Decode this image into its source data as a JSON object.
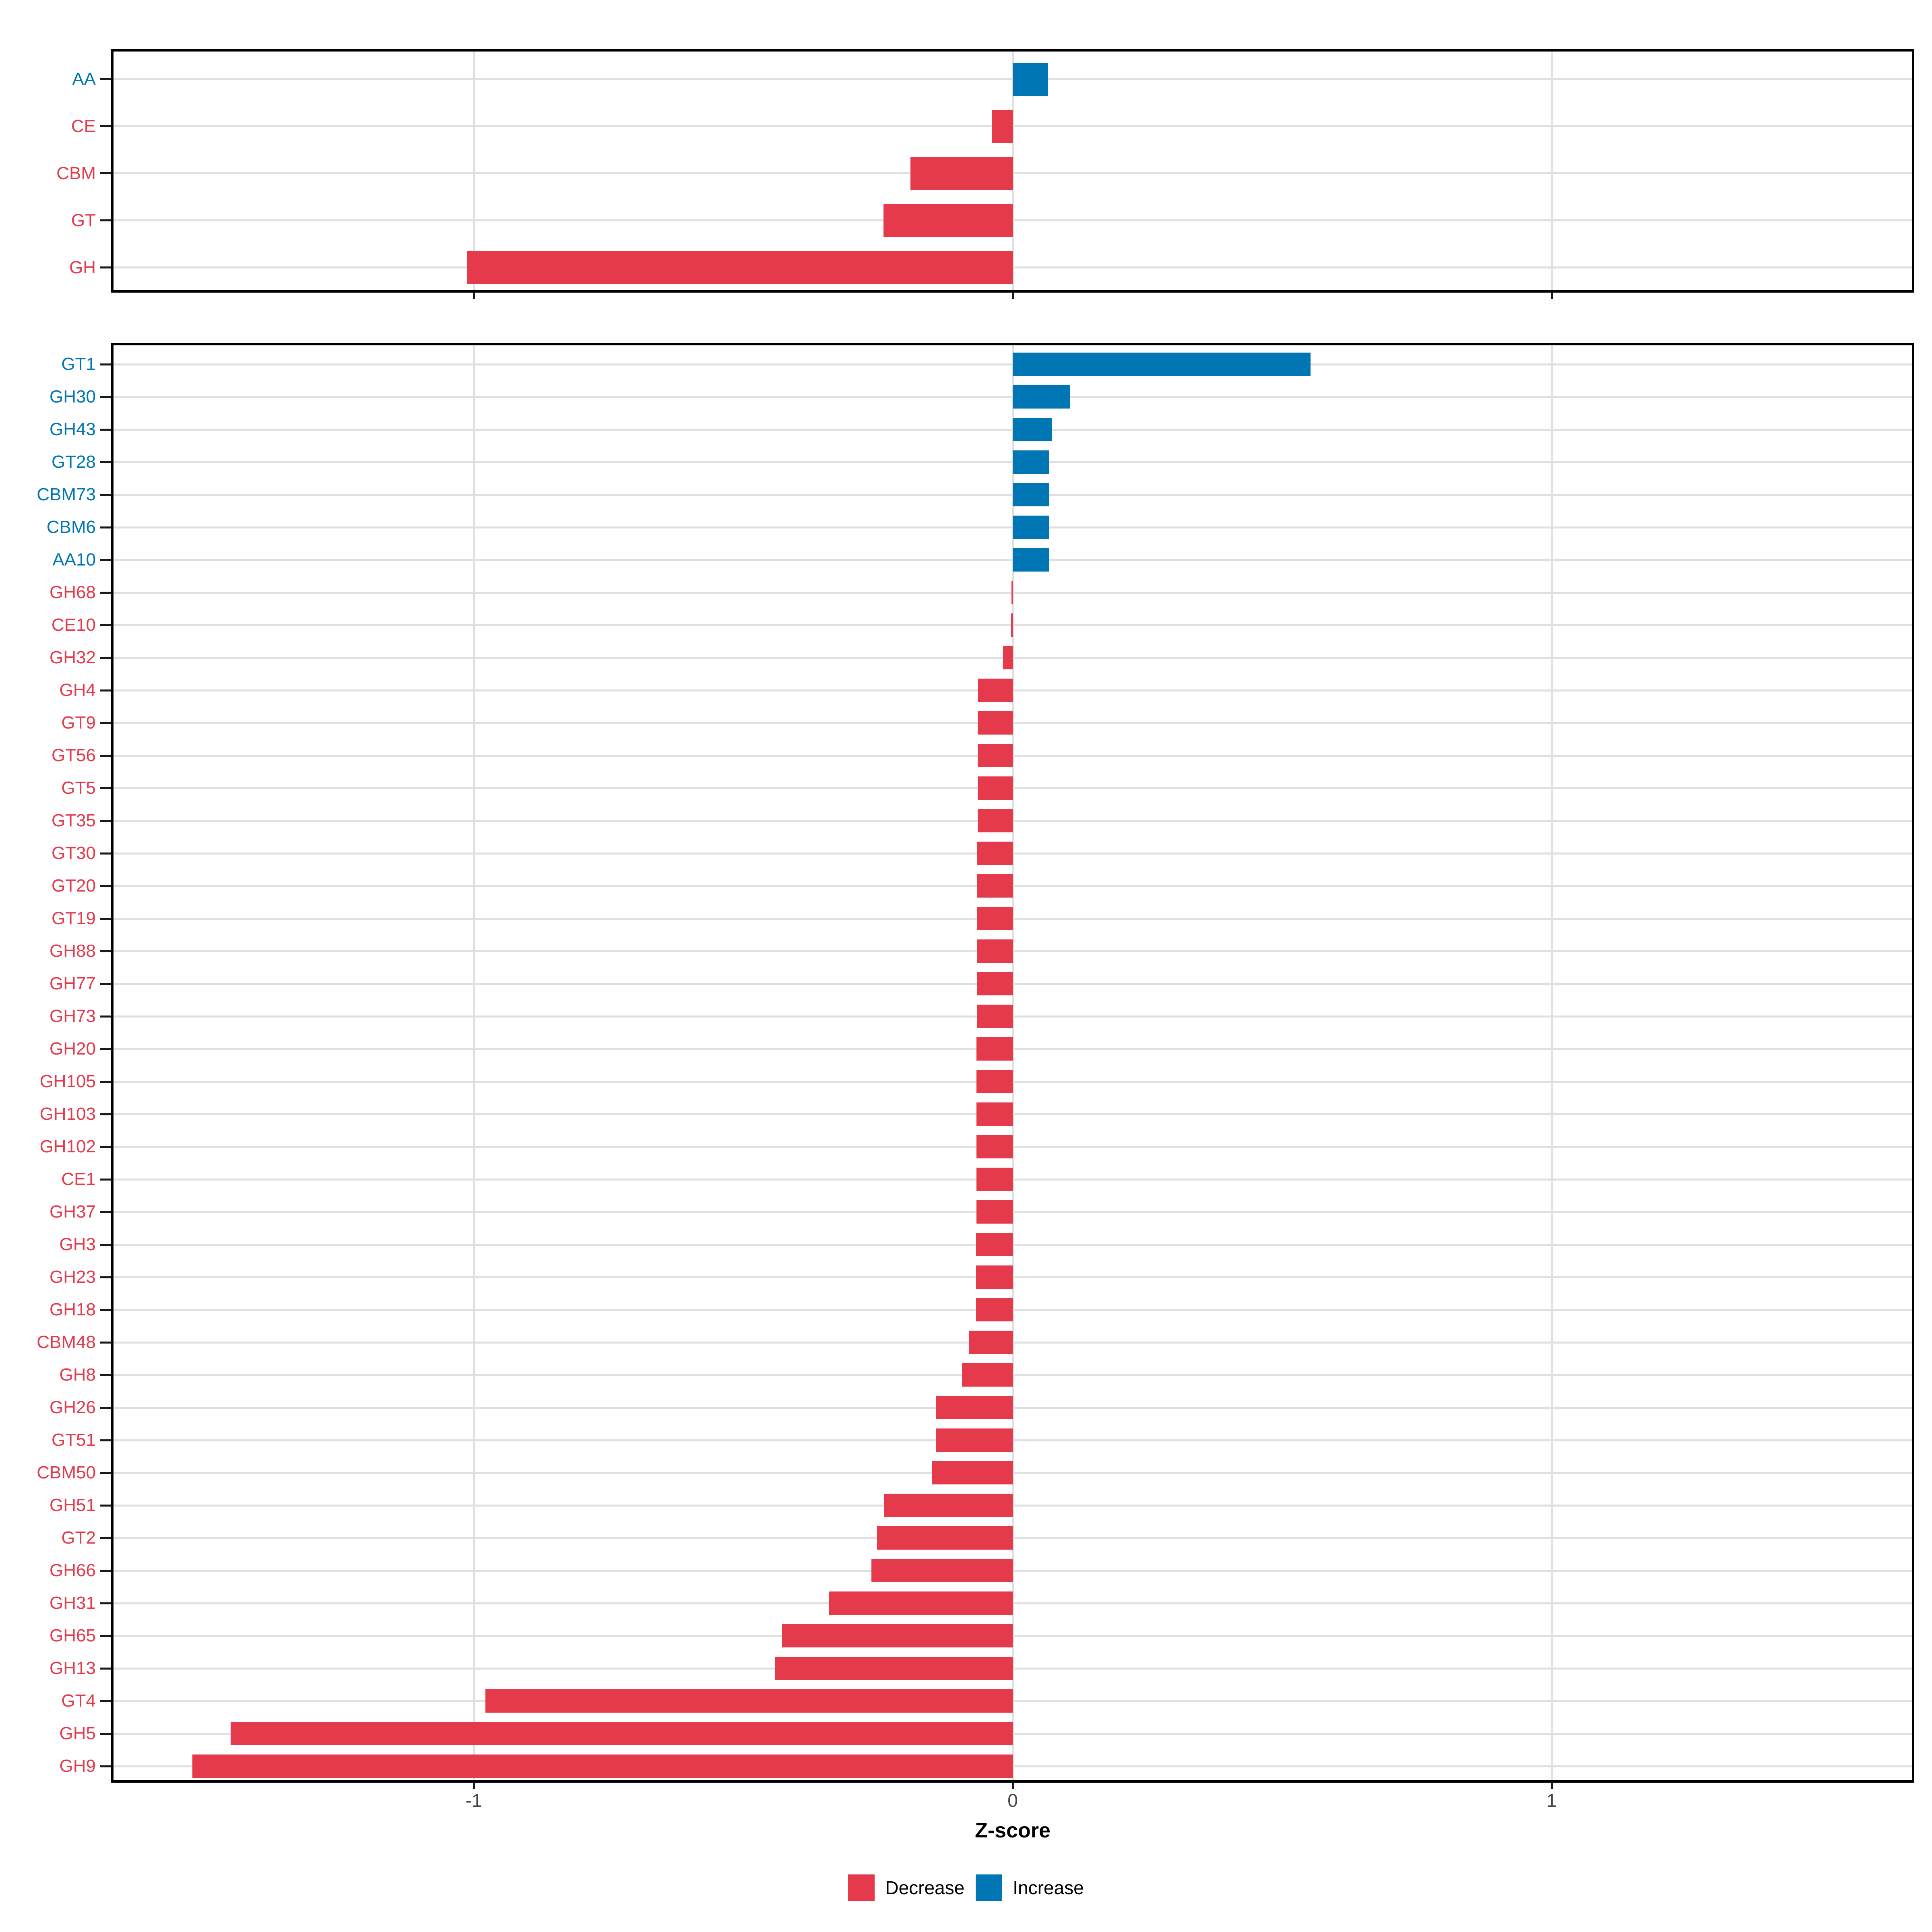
{
  "colors": {
    "decrease": "#e43a4c",
    "increase": "#0077b4",
    "grid": "#e0e0e0",
    "axis_text": "#454545",
    "panel_border": "#000000"
  },
  "axis": {
    "xlabel": "Z-score",
    "tick_labels": [
      "-1",
      "0",
      "1"
    ],
    "tick_values": [
      -1,
      0,
      1
    ]
  },
  "legend": {
    "items": [
      {
        "label": "Decrease",
        "color_key": "decrease"
      },
      {
        "label": "Increase",
        "color_key": "increase"
      }
    ]
  },
  "chart_data": [
    {
      "type": "bar",
      "orientation": "horizontal",
      "panel": "top",
      "xlabel": "Z-score",
      "xlim": [
        -1.67,
        1.67
      ],
      "x_ticks": [
        -1,
        0,
        1
      ],
      "grid": "major-only",
      "legend_position": "bottom",
      "categories": [
        "AA",
        "CE",
        "CBM",
        "GT",
        "GH"
      ],
      "values": [
        0.065,
        -0.038,
        -0.19,
        -0.24,
        -1.013
      ]
    },
    {
      "type": "bar",
      "orientation": "horizontal",
      "panel": "bottom",
      "xlabel": "Z-score",
      "xlim": [
        -1.67,
        1.67
      ],
      "x_ticks": [
        -1,
        0,
        1
      ],
      "grid": "major-only",
      "legend_position": "bottom",
      "categories": [
        "GT1",
        "GH30",
        "GH43",
        "GT28",
        "CBM73",
        "CBM6",
        "AA10",
        "GH68",
        "CE10",
        "GH32",
        "GH4",
        "GT9",
        "GT56",
        "GT5",
        "GT35",
        "GT30",
        "GT20",
        "GT19",
        "GH88",
        "GH77",
        "GH73",
        "GH20",
        "GH105",
        "GH103",
        "GH102",
        "CE1",
        "GH37",
        "GH3",
        "GH23",
        "GH18",
        "CBM48",
        "GH8",
        "GH26",
        "GT51",
        "CBM50",
        "GH51",
        "GT2",
        "GH66",
        "GH31",
        "GH65",
        "GH13",
        "GT4",
        "GH5",
        "GH9"
      ],
      "values": [
        0.553,
        0.106,
        0.073,
        0.067,
        0.067,
        0.067,
        0.067,
        -0.002,
        -0.003,
        -0.018,
        -0.064,
        -0.065,
        -0.065,
        -0.065,
        -0.065,
        -0.066,
        -0.066,
        -0.066,
        -0.066,
        -0.066,
        -0.066,
        -0.067,
        -0.067,
        -0.067,
        -0.067,
        -0.067,
        -0.067,
        -0.068,
        -0.068,
        -0.068,
        -0.081,
        -0.094,
        -0.142,
        -0.143,
        -0.15,
        -0.239,
        -0.252,
        -0.262,
        -0.341,
        -0.428,
        -0.441,
        -0.978,
        -1.451,
        -1.522
      ]
    }
  ]
}
